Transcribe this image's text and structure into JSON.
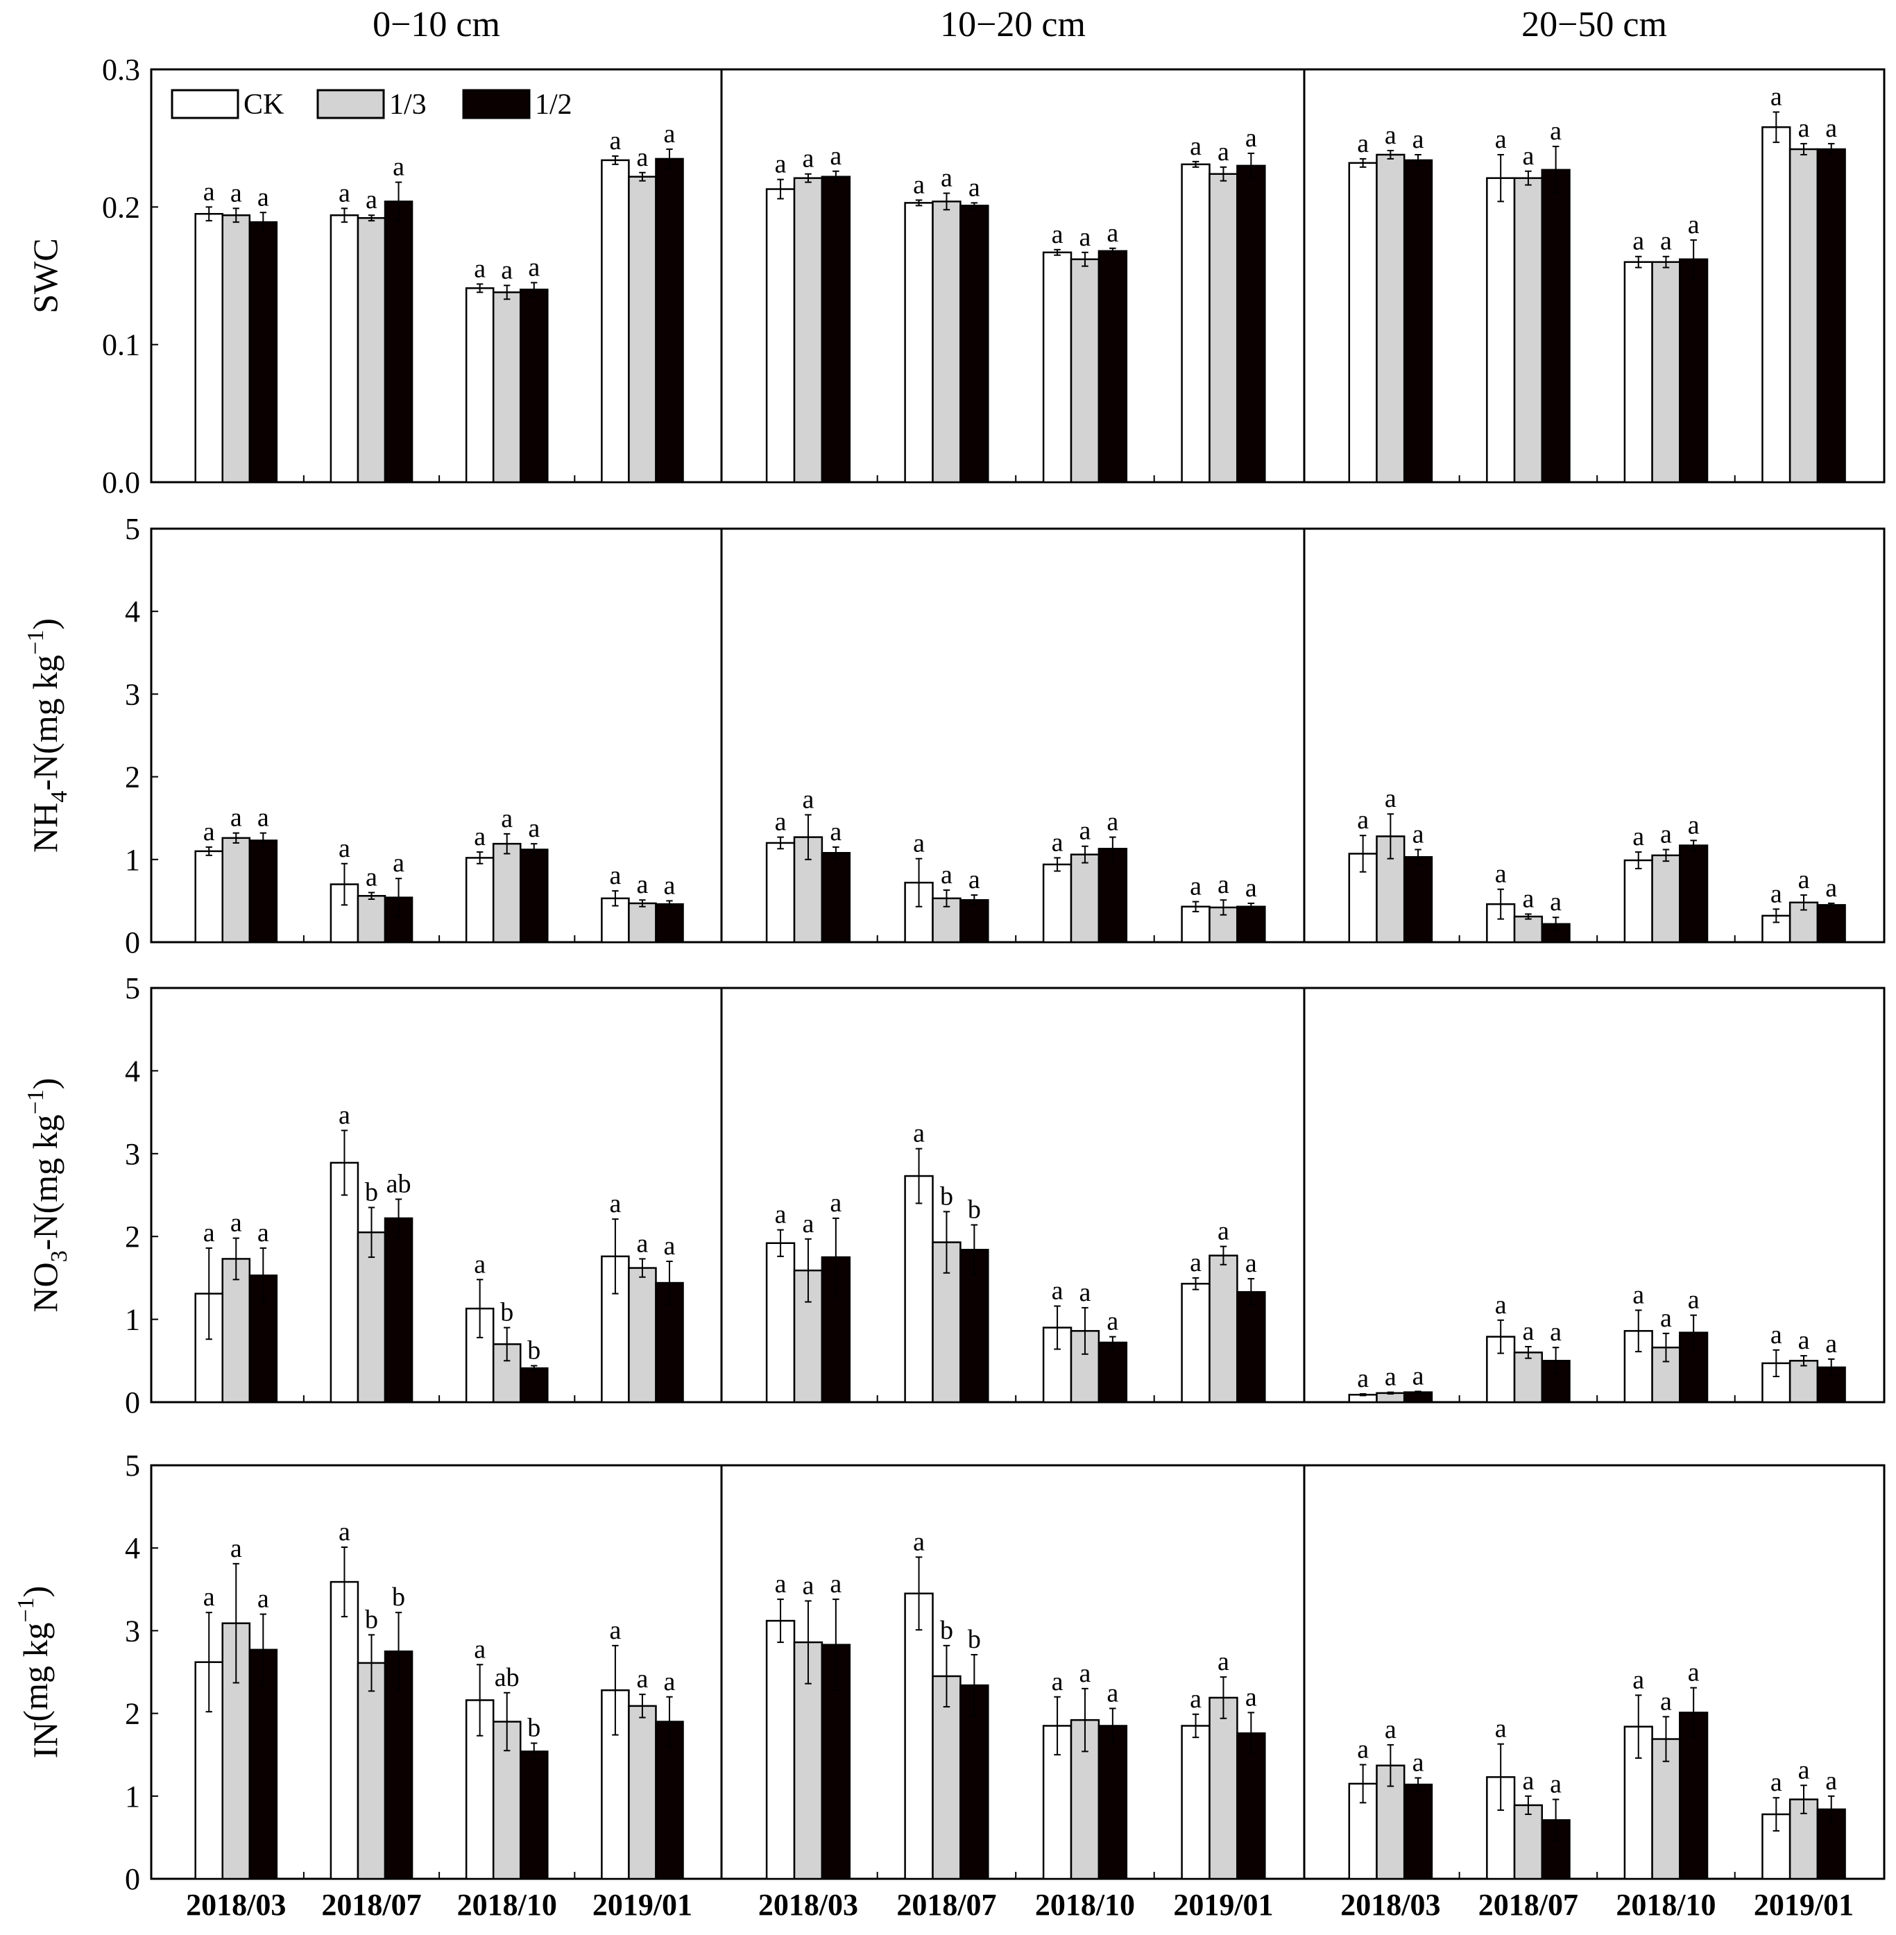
{
  "chart_data": {
    "type": "bar",
    "categories": [
      "2018/03",
      "2018/07",
      "2018/10",
      "2019/01"
    ],
    "depths": [
      "0−10 cm",
      "10−20 cm",
      "20−50 cm"
    ],
    "legend": [
      {
        "name": "CK",
        "color": "#ffffff"
      },
      {
        "name": "1/3",
        "color": "#d3d3d3"
      },
      {
        "name": "1/2",
        "color": "#0a0000"
      }
    ],
    "rows": [
      {
        "id": "swc",
        "ylabel": "SWC",
        "ylim": [
          0,
          0.3
        ],
        "yticks": [
          "0.0",
          "0.1",
          "0.2",
          "0.3"
        ],
        "panels": [
          {
            "values": [
              [
                0.195,
                0.194,
                0.189
              ],
              [
                0.194,
                0.192,
                0.204
              ],
              [
                0.141,
                0.138,
                0.14
              ],
              [
                0.234,
                0.222,
                0.235
              ]
            ],
            "errors": [
              [
                0.005,
                0.005,
                0.007
              ],
              [
                0.005,
                0.002,
                0.014
              ],
              [
                0.003,
                0.005,
                0.005
              ],
              [
                0.003,
                0.003,
                0.007
              ]
            ],
            "letters": [
              [
                "a",
                "a",
                "a"
              ],
              [
                "a",
                "a",
                "a"
              ],
              [
                "a",
                "a",
                "a"
              ],
              [
                "a",
                "a",
                "a"
              ]
            ]
          },
          {
            "values": [
              [
                0.213,
                0.221,
                0.222
              ],
              [
                0.203,
                0.204,
                0.201
              ],
              [
                0.167,
                0.162,
                0.168
              ],
              [
                0.231,
                0.224,
                0.23
              ]
            ],
            "errors": [
              [
                0.007,
                0.003,
                0.004
              ],
              [
                0.002,
                0.006,
                0.002
              ],
              [
                0.002,
                0.005,
                0.002
              ],
              [
                0.002,
                0.005,
                0.009
              ]
            ],
            "letters": [
              [
                "a",
                "a",
                "a"
              ],
              [
                "a",
                "a",
                "a"
              ],
              [
                "a",
                "a",
                "a"
              ],
              [
                "a",
                "a",
                "a"
              ]
            ]
          },
          {
            "values": [
              [
                0.232,
                0.238,
                0.234
              ],
              [
                0.221,
                0.221,
                0.227
              ],
              [
                0.16,
                0.16,
                0.162
              ],
              [
                0.258,
                0.242,
                0.242
              ]
            ],
            "errors": [
              [
                0.003,
                0.003,
                0.004
              ],
              [
                0.017,
                0.005,
                0.017
              ],
              [
                0.004,
                0.004,
                0.014
              ],
              [
                0.011,
                0.004,
                0.004
              ]
            ],
            "letters": [
              [
                "a",
                "a",
                "a"
              ],
              [
                "a",
                "a",
                "a"
              ],
              [
                "a",
                "a",
                "a"
              ],
              [
                "a",
                "a",
                "a"
              ]
            ]
          }
        ]
      },
      {
        "id": "nh4",
        "ylabel_main": "NH",
        "ylabel_sub": "4",
        "ylabel_rest": "-N(mg kg",
        "ylabel_sup": "−1",
        "ylabel_close": ")",
        "ylim": [
          0,
          5
        ],
        "yticks": [
          "0",
          "1",
          "2",
          "3",
          "4",
          "5"
        ],
        "panels": [
          {
            "values": [
              [
                1.1,
                1.26,
                1.23
              ],
              [
                0.7,
                0.56,
                0.54
              ],
              [
                1.02,
                1.19,
                1.12
              ],
              [
                0.53,
                0.47,
                0.46
              ]
            ],
            "errors": [
              [
                0.05,
                0.06,
                0.09
              ],
              [
                0.25,
                0.04,
                0.23
              ],
              [
                0.07,
                0.12,
                0.07
              ],
              [
                0.09,
                0.04,
                0.04
              ]
            ],
            "letters": [
              [
                "a",
                "a",
                "a"
              ],
              [
                "a",
                "a",
                "a"
              ],
              [
                "a",
                "a",
                "a"
              ],
              [
                "a",
                "a",
                "a"
              ]
            ]
          },
          {
            "values": [
              [
                1.2,
                1.27,
                1.08
              ],
              [
                0.72,
                0.53,
                0.51
              ],
              [
                0.94,
                1.06,
                1.13
              ],
              [
                0.43,
                0.42,
                0.43
              ]
            ],
            "errors": [
              [
                0.07,
                0.27,
                0.07
              ],
              [
                0.29,
                0.1,
                0.06
              ],
              [
                0.08,
                0.1,
                0.14
              ],
              [
                0.06,
                0.09,
                0.04
              ]
            ],
            "letters": [
              [
                "a",
                "a",
                "a"
              ],
              [
                "a",
                "a",
                "a"
              ],
              [
                "a",
                "a",
                "a"
              ],
              [
                "a",
                "a",
                "a"
              ]
            ]
          },
          {
            "values": [
              [
                1.07,
                1.28,
                1.03
              ],
              [
                0.46,
                0.31,
                0.22
              ],
              [
                0.99,
                1.05,
                1.17
              ],
              [
                0.32,
                0.48,
                0.45
              ]
            ],
            "errors": [
              [
                0.22,
                0.27,
                0.09
              ],
              [
                0.18,
                0.03,
                0.08
              ],
              [
                0.1,
                0.07,
                0.06
              ],
              [
                0.08,
                0.09,
                0.02
              ]
            ],
            "letters": [
              [
                "a",
                "a",
                "a"
              ],
              [
                "a",
                "a",
                "a"
              ],
              [
                "a",
                "a",
                "a"
              ],
              [
                "a",
                "a",
                "a"
              ]
            ]
          }
        ]
      },
      {
        "id": "no3",
        "ylabel_main": "NO",
        "ylabel_sub": "3",
        "ylabel_rest": "-N(mg kg",
        "ylabel_sup": "−1",
        "ylabel_close": ")",
        "ylim": [
          0,
          5
        ],
        "yticks": [
          "0",
          "1",
          "2",
          "3",
          "4",
          "5"
        ],
        "panels": [
          {
            "values": [
              [
                1.31,
                1.73,
                1.53
              ],
              [
                2.89,
                2.05,
                2.22
              ],
              [
                1.13,
                0.7,
                0.41
              ],
              [
                1.76,
                1.62,
                1.44
              ]
            ],
            "errors": [
              [
                0.55,
                0.25,
                0.33
              ],
              [
                0.39,
                0.3,
                0.23
              ],
              [
                0.35,
                0.2,
                0.03
              ],
              [
                0.45,
                0.11,
                0.26
              ]
            ],
            "letters": [
              [
                "a",
                "a",
                "a"
              ],
              [
                "a",
                "b",
                "ab"
              ],
              [
                "a",
                "b",
                "b"
              ],
              [
                "a",
                "a",
                "a"
              ]
            ]
          },
          {
            "values": [
              [
                1.92,
                1.59,
                1.75
              ],
              [
                2.73,
                1.93,
                1.84
              ],
              [
                0.9,
                0.86,
                0.72
              ],
              [
                1.43,
                1.77,
                1.33
              ]
            ],
            "errors": [
              [
                0.16,
                0.38,
                0.47
              ],
              [
                0.33,
                0.37,
                0.3
              ],
              [
                0.26,
                0.28,
                0.07
              ],
              [
                0.07,
                0.11,
                0.16
              ]
            ],
            "letters": [
              [
                "a",
                "a",
                "a"
              ],
              [
                "a",
                "b",
                "b"
              ],
              [
                "a",
                "a",
                "a"
              ],
              [
                "a",
                "a",
                "a"
              ]
            ]
          },
          {
            "values": [
              [
                0.09,
                0.11,
                0.12
              ],
              [
                0.79,
                0.6,
                0.5
              ],
              [
                0.86,
                0.66,
                0.84
              ],
              [
                0.47,
                0.5,
                0.42
              ]
            ],
            "errors": [
              [
                0.01,
                0.01,
                0.01
              ],
              [
                0.2,
                0.07,
                0.16
              ],
              [
                0.25,
                0.17,
                0.21
              ],
              [
                0.16,
                0.06,
                0.1
              ]
            ],
            "letters": [
              [
                "a",
                "a",
                "a"
              ],
              [
                "a",
                "a",
                "a"
              ],
              [
                "a",
                "a",
                "a"
              ],
              [
                "a",
                "a",
                "a"
              ]
            ]
          }
        ]
      },
      {
        "id": "in",
        "ylabel_main": "IN",
        "ylabel_rest": "(mg kg",
        "ylabel_sup": "−1",
        "ylabel_close": ")",
        "ylim": [
          0,
          5
        ],
        "yticks": [
          "0",
          "1",
          "2",
          "3",
          "4",
          "5"
        ],
        "panels": [
          {
            "values": [
              [
                2.62,
                3.09,
                2.77
              ],
              [
                3.59,
                2.61,
                2.75
              ],
              [
                2.16,
                1.9,
                1.54
              ],
              [
                2.28,
                2.09,
                1.9
              ]
            ],
            "errors": [
              [
                0.6,
                0.72,
                0.43
              ],
              [
                0.42,
                0.34,
                0.47
              ],
              [
                0.43,
                0.35,
                0.1
              ],
              [
                0.54,
                0.14,
                0.3
              ]
            ],
            "letters": [
              [
                "a",
                "a",
                "a"
              ],
              [
                "a",
                "b",
                "b"
              ],
              [
                "a",
                "ab",
                "b"
              ],
              [
                "a",
                "a",
                "a"
              ]
            ]
          },
          {
            "values": [
              [
                3.12,
                2.86,
                2.83
              ],
              [
                3.45,
                2.45,
                2.34
              ],
              [
                1.85,
                1.92,
                1.85
              ],
              [
                1.85,
                2.19,
                1.76
              ]
            ],
            "errors": [
              [
                0.26,
                0.5,
                0.55
              ],
              [
                0.44,
                0.37,
                0.37
              ],
              [
                0.35,
                0.38,
                0.21
              ],
              [
                0.14,
                0.25,
                0.25
              ]
            ],
            "letters": [
              [
                "a",
                "a",
                "a"
              ],
              [
                "a",
                "b",
                "b"
              ],
              [
                "a",
                "a",
                "a"
              ],
              [
                "a",
                "a",
                "a"
              ]
            ]
          },
          {
            "values": [
              [
                1.15,
                1.37,
                1.14
              ],
              [
                1.23,
                0.89,
                0.71
              ],
              [
                1.84,
                1.69,
                2.01
              ],
              [
                0.78,
                0.96,
                0.84
              ]
            ],
            "errors": [
              [
                0.23,
                0.25,
                0.08
              ],
              [
                0.4,
                0.11,
                0.25
              ],
              [
                0.38,
                0.27,
                0.3
              ],
              [
                0.2,
                0.17,
                0.16
              ]
            ],
            "letters": [
              [
                "a",
                "a",
                "a"
              ],
              [
                "a",
                "a",
                "a"
              ],
              [
                "a",
                "a",
                "a"
              ],
              [
                "a",
                "a",
                "a"
              ]
            ]
          }
        ]
      }
    ]
  }
}
